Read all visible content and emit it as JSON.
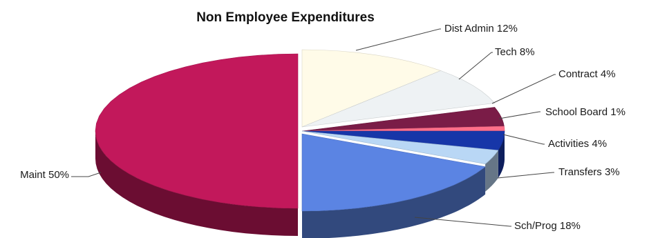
{
  "chart_data": {
    "type": "pie",
    "title": "Non Employee Expenditures",
    "slices": [
      {
        "label": "Maint 50%",
        "category": "Maint",
        "value": 50,
        "color": "#c2185b"
      },
      {
        "label": "Dist Admin 12%",
        "category": "Dist Admin",
        "value": 12,
        "color": "#fffbe8"
      },
      {
        "label": "Tech 8%",
        "category": "Tech",
        "value": 8,
        "color": "#eef2f4"
      },
      {
        "label": "Contract 4%",
        "category": "Contract",
        "value": 4,
        "color": "#7a1c47"
      },
      {
        "label": "School Board 1%",
        "category": "School Board",
        "value": 1,
        "color": "#ff6f8a"
      },
      {
        "label": "Activities 4%",
        "category": "Activities",
        "value": 4,
        "color": "#1736a8"
      },
      {
        "label": "Transfers 3%",
        "category": "Transfers",
        "value": 3,
        "color": "#b9d7f5"
      },
      {
        "label": "Sch/Prog 18%",
        "category": "Sch/Prog",
        "value": 18,
        "color": "#5b84e3"
      }
    ]
  }
}
